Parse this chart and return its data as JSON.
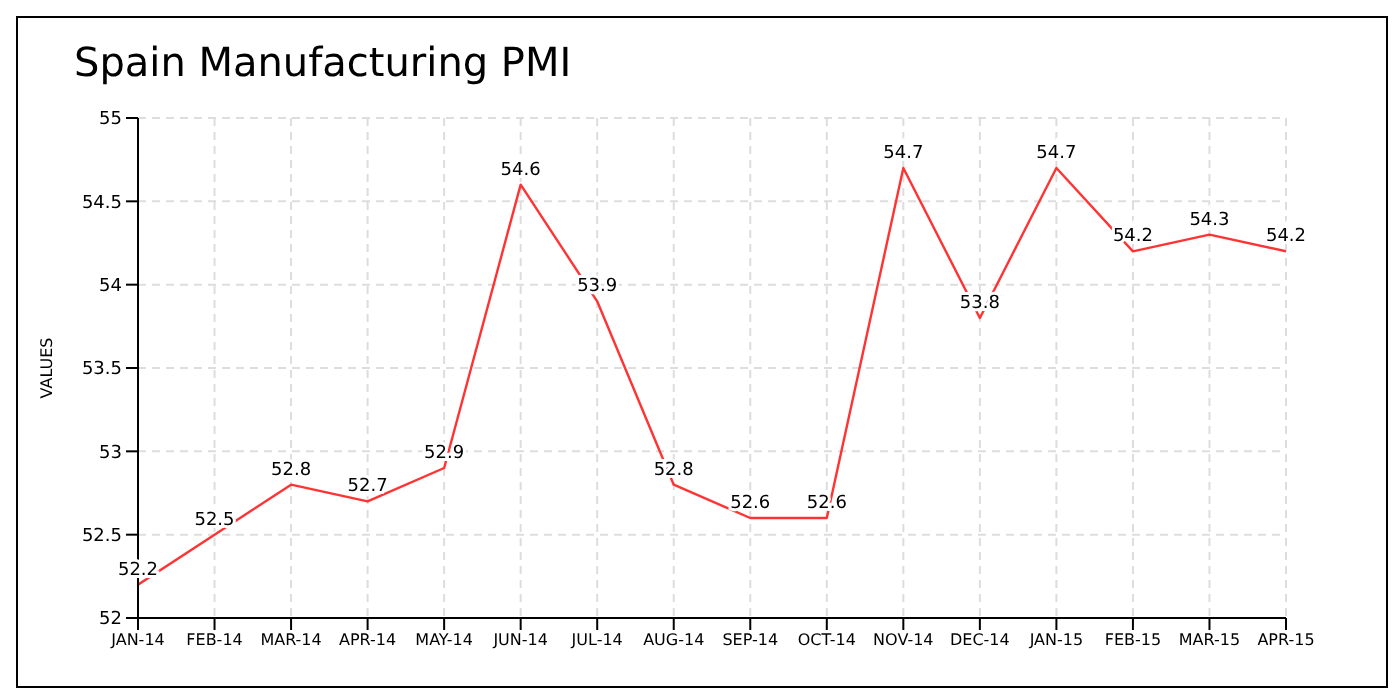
{
  "chart_data": {
    "type": "line",
    "title": "Spain Manufacturing PMI",
    "ylabel": "VALUES",
    "categories": [
      "JAN-14",
      "FEB-14",
      "MAR-14",
      "APR-14",
      "MAY-14",
      "JUN-14",
      "JUL-14",
      "AUG-14",
      "SEP-14",
      "OCT-14",
      "NOV-14",
      "DEC-14",
      "JAN-15",
      "FEB-15",
      "MAR-15",
      "APR-15"
    ],
    "series": [
      {
        "color": "#ff3333",
        "values": [
          52.2,
          52.5,
          52.8,
          52.7,
          52.9,
          54.6,
          53.9,
          52.8,
          52.6,
          52.6,
          54.7,
          53.8,
          54.7,
          54.2,
          54.3,
          54.2
        ]
      }
    ],
    "ylim": [
      52,
      55
    ],
    "yticks": [
      52,
      52.5,
      53,
      53.5,
      54,
      54.5,
      55
    ],
    "grid": true,
    "data_labels": true,
    "marker": "none",
    "line_style": "solid"
  }
}
